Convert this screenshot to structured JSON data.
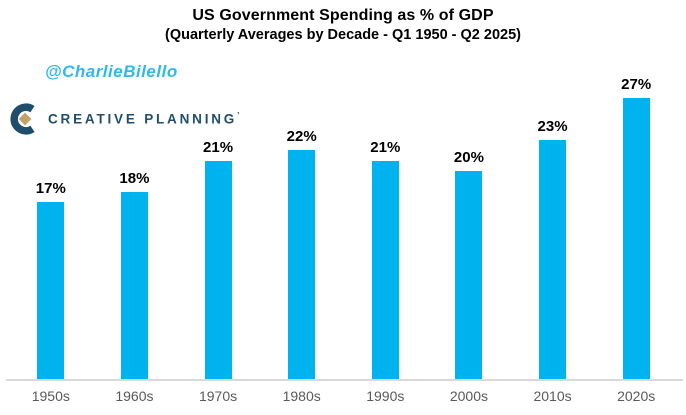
{
  "page": {
    "background": "#ffffff"
  },
  "header": {
    "title": "US Government Spending as % of GDP",
    "subtitle": "(Quarterly Averages by Decade - Q1 1950 - Q2 2025)"
  },
  "branding": {
    "watermark": "@CharlieBilello",
    "watermark_color": "#2eb9ea",
    "logo_text": "CREATIVE PLANNING",
    "logo_tm": "’",
    "logo_navy": "#1e4e6b",
    "logo_gold": "#c3a36a"
  },
  "chart_data": {
    "type": "bar",
    "title": "US Government Spending as % of GDP",
    "subtitle": "(Quarterly Averages by Decade - Q1 1950 - Q2 2025)",
    "categories": [
      "1950s",
      "1960s",
      "1970s",
      "1980s",
      "1990s",
      "2000s",
      "2010s",
      "2020s"
    ],
    "values": [
      17,
      18,
      21,
      22,
      21,
      20,
      23,
      27
    ],
    "value_labels": [
      "17%",
      "18%",
      "21%",
      "22%",
      "21%",
      "20%",
      "23%",
      "27%"
    ],
    "value_suffix": "%",
    "xlabel": "",
    "ylabel": "",
    "ylim": [
      0,
      29
    ],
    "grid": false,
    "legend": "none",
    "bar_color": "#00b2ee",
    "axis_line_color": "#d9d9d9",
    "tick_label_color": "#595959",
    "data_label_color": "#000000"
  }
}
